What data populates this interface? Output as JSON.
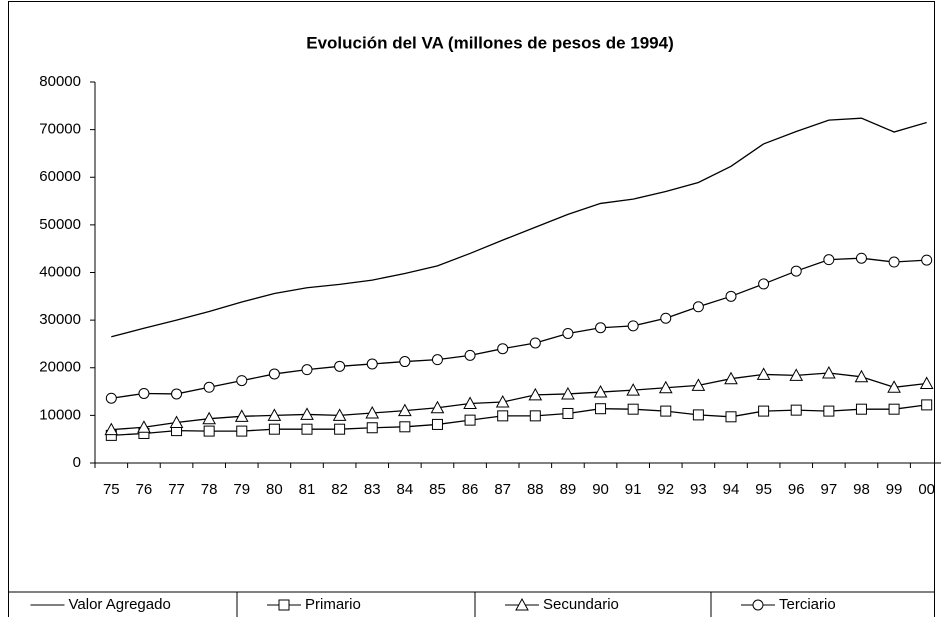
{
  "chart_data": {
    "type": "line",
    "title": "Evolución del VA (millones de pesos de 1994)",
    "categories": [
      "75",
      "76",
      "77",
      "78",
      "79",
      "80",
      "81",
      "82",
      "83",
      "84",
      "85",
      "86",
      "87",
      "88",
      "89",
      "90",
      "91",
      "92",
      "93",
      "94",
      "95",
      "96",
      "97",
      "98",
      "99",
      "00"
    ],
    "ylim": [
      0,
      80000
    ],
    "yticks": [
      0,
      10000,
      20000,
      30000,
      40000,
      50000,
      60000,
      70000,
      80000
    ],
    "grid": false,
    "legend": "bottom",
    "series": [
      {
        "name": "Valor Agregado",
        "color": "#000000",
        "marker": "none",
        "values": [
          26500,
          28300,
          30000,
          31800,
          33800,
          35600,
          36800,
          37500,
          38400,
          39800,
          41400,
          44000,
          46800,
          49500,
          52200,
          54500,
          55400,
          57000,
          58900,
          62300,
          67000,
          69600,
          72000,
          72400,
          69500,
          71500
        ]
      },
      {
        "name": "Primario",
        "color": "#000000",
        "marker": "square",
        "values": [
          5800,
          6200,
          6800,
          6700,
          6700,
          7100,
          7100,
          7100,
          7400,
          7600,
          8100,
          9000,
          9900,
          9900,
          10400,
          11400,
          11300,
          10900,
          10100,
          9700,
          10900,
          11100,
          10900,
          11300,
          11300,
          12200
        ]
      },
      {
        "name": "Secundario",
        "color": "#000000",
        "marker": "triangle",
        "values": [
          7000,
          7500,
          8500,
          9300,
          9800,
          10000,
          10200,
          10000,
          10500,
          11000,
          11600,
          12500,
          12800,
          14300,
          14500,
          14900,
          15300,
          15800,
          16300,
          17700,
          18600,
          18400,
          18900,
          18100,
          15900,
          16700
        ]
      },
      {
        "name": "Terciario",
        "color": "#000000",
        "marker": "circle",
        "values": [
          13600,
          14600,
          14500,
          15900,
          17300,
          18700,
          19600,
          20300,
          20800,
          21300,
          21700,
          22600,
          24000,
          25200,
          27200,
          28400,
          28800,
          30400,
          32800,
          35000,
          37600,
          40300,
          42700,
          43000,
          42200,
          42600
        ]
      }
    ]
  }
}
